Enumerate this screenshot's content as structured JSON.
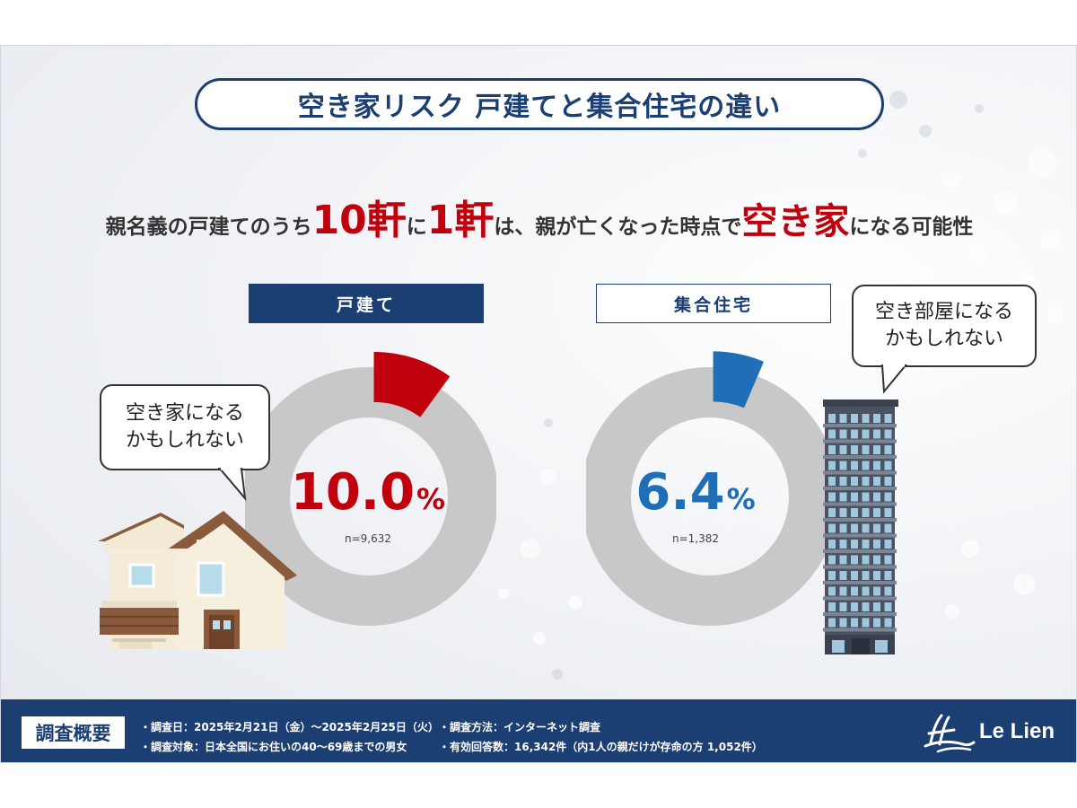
{
  "title": "空き家リスク 戸建てと集合住宅の違い",
  "headline": {
    "prefix": "親名義の戸建てのうち",
    "num1": "10軒",
    "mid1": "に",
    "num2": "1軒",
    "mid2": "は、親が亡くなった時点で",
    "keyword": "空き家",
    "suffix": "になる可能性"
  },
  "colors": {
    "navy": "#1b3f73",
    "red": "#c0000c",
    "blue": "#1f6fb7",
    "gray": "#c8c8c8"
  },
  "categories": {
    "house": "戸建て",
    "apartment": "集合住宅"
  },
  "bubbles": {
    "house": [
      "空き家になる",
      "かもしれない"
    ],
    "apartment": [
      "空き部屋になる",
      "かもしれない"
    ]
  },
  "icons": {
    "house": "house-illustration",
    "apartment": "apartment-building-illustration",
    "logo": "le-lien-logo-mark"
  },
  "chart_data": [
    {
      "type": "pie",
      "category": "戸建て",
      "value_percent": 10.0,
      "value_label": "10.0",
      "unit": "%",
      "n_label": "n=9,632",
      "highlight_color": "#c0000c",
      "remainder_color": "#c8c8c8"
    },
    {
      "type": "pie",
      "category": "集合住宅",
      "value_percent": 6.4,
      "value_label": "6.4",
      "unit": "%",
      "n_label": "n=1,382",
      "highlight_color": "#1f6fb7",
      "remainder_color": "#c8c8c8"
    }
  ],
  "footer": {
    "label": "調査概要",
    "date": "・調査日：2025年2月21日（金）～2025年2月25日（火）",
    "target": "・調査対象：日本全国にお住いの40～69歳までの男女",
    "method": "・調査方法：インターネット調査",
    "responses": "・有効回答数：16,342件（内1人の親だけが存命の方 1,052件）",
    "logo_text": "Le Lien"
  }
}
